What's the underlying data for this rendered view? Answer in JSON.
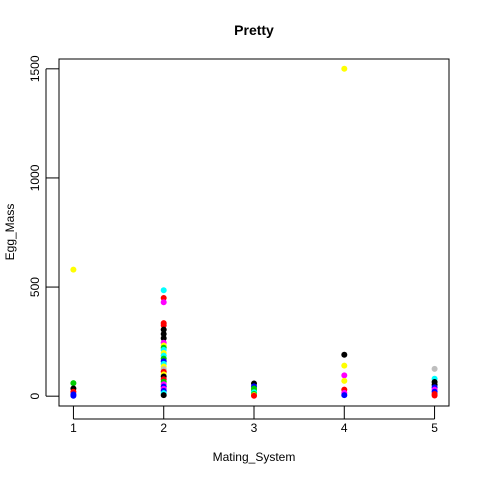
{
  "chart_data": {
    "type": "scatter",
    "title": "Pretty",
    "xlabel": "Mating_System",
    "ylabel": "Egg_Mass",
    "xlim": [
      0.84,
      5.16
    ],
    "ylim": [
      -45,
      1545
    ],
    "x_ticks": [
      1,
      2,
      3,
      4,
      5
    ],
    "y_ticks": [
      0,
      500,
      1000,
      1500
    ],
    "x_tick_labels": [
      "1",
      "2",
      "3",
      "4",
      "5"
    ],
    "y_tick_labels": [
      "0",
      "500",
      "1000",
      "1500"
    ],
    "grid": false,
    "legend": "none",
    "points": [
      {
        "x": 1,
        "y": 580,
        "color": "#ffff00"
      },
      {
        "x": 1,
        "y": 60,
        "color": "#00cd00"
      },
      {
        "x": 1,
        "y": 35,
        "color": "#000000"
      },
      {
        "x": 1,
        "y": 20,
        "color": "#ff0000"
      },
      {
        "x": 1,
        "y": 8,
        "color": "#0000ff"
      },
      {
        "x": 1,
        "y": 2,
        "color": "#0000ff"
      },
      {
        "x": 2,
        "y": 485,
        "color": "#00ffff"
      },
      {
        "x": 2,
        "y": 450,
        "color": "#ff0000"
      },
      {
        "x": 2,
        "y": 430,
        "color": "#ff00ff"
      },
      {
        "x": 2,
        "y": 335,
        "color": "#ff0000"
      },
      {
        "x": 2,
        "y": 325,
        "color": "#ff0000"
      },
      {
        "x": 2,
        "y": 305,
        "color": "#000000"
      },
      {
        "x": 2,
        "y": 285,
        "color": "#000000"
      },
      {
        "x": 2,
        "y": 265,
        "color": "#000000"
      },
      {
        "x": 2,
        "y": 245,
        "color": "#ff00ff"
      },
      {
        "x": 2,
        "y": 232,
        "color": "#ffff00"
      },
      {
        "x": 2,
        "y": 222,
        "color": "#00cd00"
      },
      {
        "x": 2,
        "y": 212,
        "color": "#00ffff"
      },
      {
        "x": 2,
        "y": 198,
        "color": "#ffff00"
      },
      {
        "x": 2,
        "y": 186,
        "color": "#00ffff"
      },
      {
        "x": 2,
        "y": 172,
        "color": "#00cd00"
      },
      {
        "x": 2,
        "y": 160,
        "color": "#0000ff"
      },
      {
        "x": 2,
        "y": 148,
        "color": "#00ffff"
      },
      {
        "x": 2,
        "y": 136,
        "color": "#ffff00"
      },
      {
        "x": 2,
        "y": 124,
        "color": "#bebebe"
      },
      {
        "x": 2,
        "y": 112,
        "color": "#ff0000"
      },
      {
        "x": 2,
        "y": 100,
        "color": "#ffff00"
      },
      {
        "x": 2,
        "y": 90,
        "color": "#000000"
      },
      {
        "x": 2,
        "y": 78,
        "color": "#ff0000"
      },
      {
        "x": 2,
        "y": 66,
        "color": "#00cd00"
      },
      {
        "x": 2,
        "y": 55,
        "color": "#ff00ff"
      },
      {
        "x": 2,
        "y": 44,
        "color": "#0000ff"
      },
      {
        "x": 2,
        "y": 34,
        "color": "#ff00ff"
      },
      {
        "x": 2,
        "y": 24,
        "color": "#0000ff"
      },
      {
        "x": 2,
        "y": 14,
        "color": "#00ffff"
      },
      {
        "x": 2,
        "y": 5,
        "color": "#000000"
      },
      {
        "x": 3,
        "y": 58,
        "color": "#000000"
      },
      {
        "x": 3,
        "y": 45,
        "color": "#0000ff"
      },
      {
        "x": 3,
        "y": 35,
        "color": "#00cd00"
      },
      {
        "x": 3,
        "y": 26,
        "color": "#00cd00"
      },
      {
        "x": 3,
        "y": 18,
        "color": "#00ffff"
      },
      {
        "x": 3,
        "y": 10,
        "color": "#00cd00"
      },
      {
        "x": 3,
        "y": 5,
        "color": "#ffff00"
      },
      {
        "x": 3,
        "y": 2,
        "color": "#ff0000"
      },
      {
        "x": 4,
        "y": 1500,
        "color": "#ffff00"
      },
      {
        "x": 4,
        "y": 190,
        "color": "#000000"
      },
      {
        "x": 4,
        "y": 140,
        "color": "#ffff00"
      },
      {
        "x": 4,
        "y": 95,
        "color": "#ff00ff"
      },
      {
        "x": 4,
        "y": 70,
        "color": "#ffff00"
      },
      {
        "x": 4,
        "y": 30,
        "color": "#ff0000"
      },
      {
        "x": 4,
        "y": 15,
        "color": "#ff00ff"
      },
      {
        "x": 4,
        "y": 5,
        "color": "#0000ff"
      },
      {
        "x": 5,
        "y": 125,
        "color": "#bebebe"
      },
      {
        "x": 5,
        "y": 80,
        "color": "#00ffff"
      },
      {
        "x": 5,
        "y": 65,
        "color": "#000000"
      },
      {
        "x": 5,
        "y": 52,
        "color": "#000000"
      },
      {
        "x": 5,
        "y": 40,
        "color": "#0000ff"
      },
      {
        "x": 5,
        "y": 30,
        "color": "#ff00ff"
      },
      {
        "x": 5,
        "y": 20,
        "color": "#0000ff"
      },
      {
        "x": 5,
        "y": 10,
        "color": "#ff0000"
      },
      {
        "x": 5,
        "y": 3,
        "color": "#ff0000"
      }
    ]
  }
}
